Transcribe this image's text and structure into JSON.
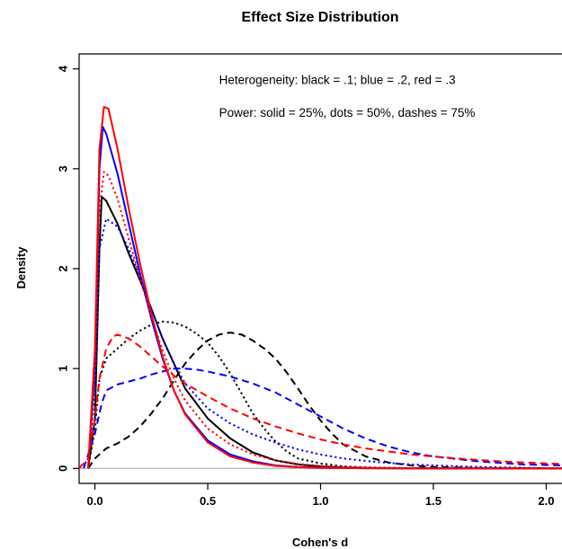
{
  "chart_data": {
    "type": "line",
    "title": "Effect Size Distribution",
    "xlabel": "Cohen's d",
    "ylabel": "Density",
    "xlim": [
      -0.07,
      2.07
    ],
    "ylim": [
      -0.15,
      4.15
    ],
    "xticks": [
      0.0,
      0.5,
      1.0,
      1.5,
      2.0
    ],
    "xtick_labels": [
      "0.0",
      "0.5",
      "1.0",
      "1.5",
      "2.0"
    ],
    "yticks": [
      0,
      1,
      2,
      3,
      4
    ],
    "ytick_labels": [
      "0",
      "1",
      "2",
      "3",
      "4"
    ],
    "grid": false,
    "reference_line_y": 0,
    "reference_line_color": "#bebebe",
    "annotations": [
      {
        "text": "Heterogeneity: black = .1; blue = .2, red = .3",
        "x": 0.55,
        "y": 3.85
      },
      {
        "text": "Power: solid = 25%, dots = 50%, dashes = 75%",
        "x": 0.55,
        "y": 3.52
      }
    ],
    "series": [
      {
        "color": "#000000",
        "style": "solid",
        "x": [
          -0.03,
          0.0,
          0.02,
          0.03,
          0.05,
          0.1,
          0.15,
          0.2,
          0.25,
          0.3,
          0.35,
          0.4,
          0.5,
          0.6,
          0.7,
          0.8,
          0.9,
          1.0,
          1.1,
          1.2,
          1.3,
          1.5,
          2.07
        ],
        "y": [
          0.0,
          0.5,
          2.2,
          2.72,
          2.68,
          2.45,
          2.15,
          1.88,
          1.6,
          1.3,
          1.05,
          0.8,
          0.5,
          0.3,
          0.16,
          0.08,
          0.04,
          0.02,
          0.01,
          0.005,
          0.002,
          0.001,
          0.0
        ]
      },
      {
        "color": "#000000",
        "style": "dotted",
        "x": [
          -0.03,
          0.0,
          0.02,
          0.05,
          0.1,
          0.15,
          0.2,
          0.25,
          0.3,
          0.35,
          0.4,
          0.45,
          0.5,
          0.55,
          0.6,
          0.65,
          0.7,
          0.75,
          0.8,
          0.85,
          0.9,
          1.0,
          1.1,
          1.2,
          1.4,
          2.07
        ],
        "y": [
          0.0,
          0.4,
          0.9,
          1.1,
          1.2,
          1.3,
          1.38,
          1.44,
          1.47,
          1.46,
          1.42,
          1.35,
          1.26,
          1.12,
          0.95,
          0.75,
          0.55,
          0.4,
          0.27,
          0.17,
          0.1,
          0.05,
          0.02,
          0.01,
          0.002,
          0.0
        ]
      },
      {
        "color": "#000000",
        "style": "dashed",
        "x": [
          -0.03,
          0.0,
          0.05,
          0.1,
          0.15,
          0.2,
          0.25,
          0.3,
          0.35,
          0.4,
          0.45,
          0.5,
          0.55,
          0.6,
          0.65,
          0.7,
          0.75,
          0.8,
          0.85,
          0.9,
          0.95,
          1.0,
          1.05,
          1.1,
          1.2,
          1.3,
          1.4,
          1.5,
          1.7,
          2.07
        ],
        "y": [
          0.0,
          0.1,
          0.2,
          0.25,
          0.32,
          0.42,
          0.55,
          0.7,
          0.88,
          1.05,
          1.18,
          1.28,
          1.34,
          1.36,
          1.34,
          1.28,
          1.2,
          1.1,
          0.96,
          0.8,
          0.63,
          0.48,
          0.35,
          0.24,
          0.12,
          0.06,
          0.03,
          0.015,
          0.005,
          0.0
        ]
      },
      {
        "color": "#0000ff",
        "style": "solid",
        "x": [
          -0.03,
          0.0,
          0.02,
          0.035,
          0.05,
          0.1,
          0.15,
          0.2,
          0.25,
          0.3,
          0.35,
          0.4,
          0.5,
          0.6,
          0.7,
          0.8,
          0.9,
          1.0,
          1.2,
          2.07
        ],
        "y": [
          0.0,
          1.0,
          3.0,
          3.42,
          3.35,
          2.95,
          2.45,
          1.95,
          1.5,
          1.1,
          0.78,
          0.55,
          0.28,
          0.14,
          0.07,
          0.03,
          0.015,
          0.007,
          0.002,
          0.0
        ]
      },
      {
        "color": "#0000ff",
        "style": "dotted",
        "x": [
          -0.03,
          0.0,
          0.02,
          0.05,
          0.1,
          0.15,
          0.2,
          0.25,
          0.3,
          0.35,
          0.4,
          0.5,
          0.6,
          0.7,
          0.8,
          0.9,
          1.0,
          1.1,
          1.2,
          1.3,
          1.4,
          1.5,
          1.7,
          2.07
        ],
        "y": [
          0.0,
          0.8,
          2.2,
          2.5,
          2.42,
          2.2,
          1.92,
          1.6,
          1.3,
          1.05,
          0.85,
          0.6,
          0.45,
          0.34,
          0.26,
          0.19,
          0.14,
          0.1,
          0.075,
          0.055,
          0.04,
          0.03,
          0.015,
          0.0
        ]
      },
      {
        "color": "#0000ff",
        "style": "dashed",
        "x": [
          -0.05,
          0.0,
          0.03,
          0.05,
          0.1,
          0.15,
          0.2,
          0.25,
          0.3,
          0.35,
          0.4,
          0.45,
          0.5,
          0.6,
          0.7,
          0.8,
          0.9,
          1.0,
          1.1,
          1.2,
          1.3,
          1.4,
          1.5,
          1.7,
          1.9,
          2.07
        ],
        "y": [
          0.0,
          0.35,
          0.65,
          0.78,
          0.84,
          0.87,
          0.9,
          0.94,
          0.97,
          1.0,
          1.0,
          0.99,
          0.97,
          0.92,
          0.85,
          0.76,
          0.64,
          0.52,
          0.4,
          0.3,
          0.22,
          0.16,
          0.12,
          0.07,
          0.04,
          0.03
        ]
      },
      {
        "color": "#ff0000",
        "style": "solid",
        "x": [
          -0.03,
          0.0,
          0.02,
          0.04,
          0.06,
          0.1,
          0.15,
          0.2,
          0.25,
          0.3,
          0.35,
          0.4,
          0.5,
          0.6,
          0.7,
          0.8,
          0.9,
          1.0,
          1.2,
          2.07
        ],
        "y": [
          0.0,
          1.2,
          3.2,
          3.62,
          3.6,
          3.2,
          2.6,
          2.05,
          1.55,
          1.12,
          0.78,
          0.54,
          0.26,
          0.12,
          0.06,
          0.025,
          0.012,
          0.006,
          0.002,
          0.0
        ]
      },
      {
        "color": "#ff0000",
        "style": "dotted",
        "x": [
          -0.03,
          0.0,
          0.02,
          0.04,
          0.06,
          0.1,
          0.15,
          0.2,
          0.25,
          0.3,
          0.35,
          0.4,
          0.5,
          0.6,
          0.7,
          0.8,
          0.9,
          1.0,
          1.1,
          1.2,
          1.4,
          2.07
        ],
        "y": [
          0.0,
          1.0,
          2.6,
          2.97,
          2.93,
          2.7,
          2.3,
          1.9,
          1.52,
          1.18,
          0.9,
          0.68,
          0.4,
          0.24,
          0.14,
          0.08,
          0.045,
          0.025,
          0.015,
          0.008,
          0.003,
          0.0
        ]
      },
      {
        "color": "#ff0000",
        "style": "dashed",
        "x": [
          -0.07,
          -0.03,
          0.0,
          0.02,
          0.05,
          0.08,
          0.1,
          0.15,
          0.2,
          0.25,
          0.3,
          0.35,
          0.4,
          0.5,
          0.6,
          0.7,
          0.8,
          0.9,
          1.0,
          1.1,
          1.2,
          1.3,
          1.4,
          1.5,
          1.6,
          1.7,
          1.8,
          1.9,
          2.0,
          2.07
        ],
        "y": [
          0.0,
          0.1,
          0.5,
          0.9,
          1.2,
          1.32,
          1.34,
          1.3,
          1.22,
          1.12,
          1.02,
          0.93,
          0.85,
          0.72,
          0.6,
          0.5,
          0.42,
          0.35,
          0.29,
          0.24,
          0.2,
          0.17,
          0.14,
          0.12,
          0.1,
          0.085,
          0.07,
          0.06,
          0.05,
          0.045
        ]
      }
    ]
  }
}
